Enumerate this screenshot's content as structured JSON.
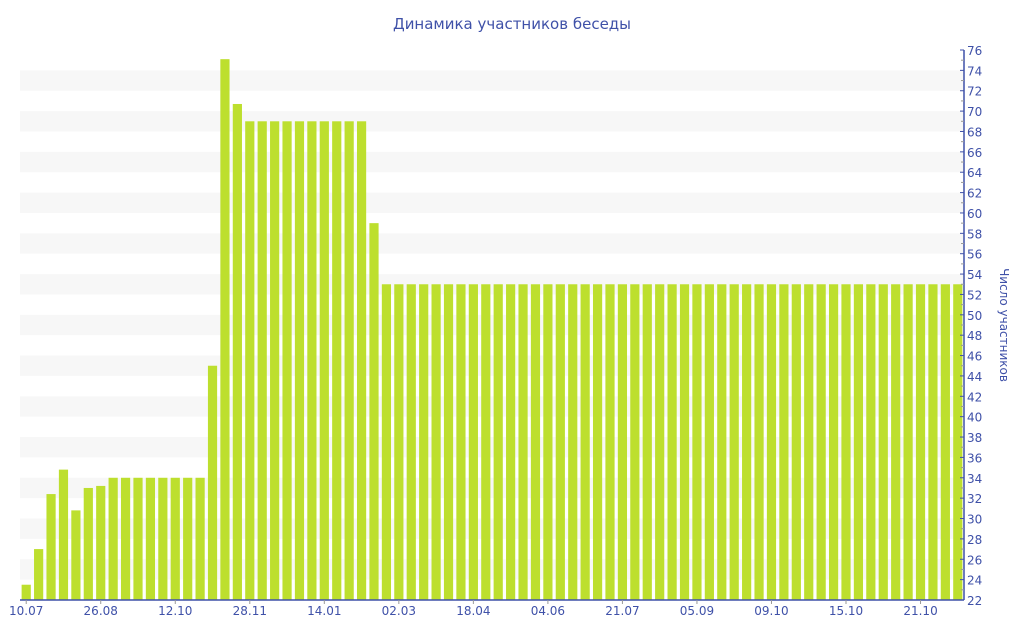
{
  "chart_data": {
    "type": "bar",
    "title": "Динамика участников беседы",
    "xlabel": "",
    "ylabel": "Число участников",
    "ylim": [
      22,
      76
    ],
    "y_ticks": [
      22,
      24,
      26,
      28,
      30,
      32,
      34,
      36,
      38,
      40,
      42,
      44,
      46,
      48,
      50,
      52,
      54,
      56,
      58,
      60,
      62,
      64,
      66,
      68,
      70,
      72,
      74,
      76
    ],
    "y_axis_side": "right",
    "x_tick_labels": [
      {
        "bar_index": 0,
        "label": "10.07"
      },
      {
        "bar_index": 6,
        "label": "26.08"
      },
      {
        "bar_index": 12,
        "label": "12.10"
      },
      {
        "bar_index": 18,
        "label": "28.11"
      },
      {
        "bar_index": 24,
        "label": "14.01"
      },
      {
        "bar_index": 30,
        "label": "02.03"
      },
      {
        "bar_index": 36,
        "label": "18.04"
      },
      {
        "bar_index": 42,
        "label": "04.06"
      },
      {
        "bar_index": 48,
        "label": "21.07"
      },
      {
        "bar_index": 54,
        "label": "05.09"
      },
      {
        "bar_index": 60,
        "label": "09.10"
      },
      {
        "bar_index": 66,
        "label": "15.10"
      },
      {
        "bar_index": 72,
        "label": "21.10"
      }
    ],
    "values": [
      23.5,
      27,
      32.4,
      34.8,
      30.8,
      33,
      33.2,
      34,
      34,
      34,
      34,
      34,
      34,
      34,
      34,
      45,
      75.1,
      70.7,
      69,
      69,
      69,
      69,
      69,
      69,
      69,
      69,
      69,
      69,
      59,
      53,
      53,
      53,
      53,
      53,
      53,
      53,
      53,
      53,
      53,
      53,
      53,
      53,
      53,
      53,
      53,
      53,
      53,
      53,
      53,
      53,
      53,
      53,
      53,
      53,
      53,
      53,
      53,
      53,
      53,
      53,
      53,
      53,
      53,
      53,
      53,
      53,
      53,
      53,
      53,
      53,
      53,
      53,
      53,
      53,
      53,
      53
    ],
    "grid": "alternating horizontal bands",
    "colors": {
      "bar": "#bddf2e",
      "axis": "#3f51a8",
      "band": "#f7f7f7",
      "text": "#3f51a8"
    }
  }
}
